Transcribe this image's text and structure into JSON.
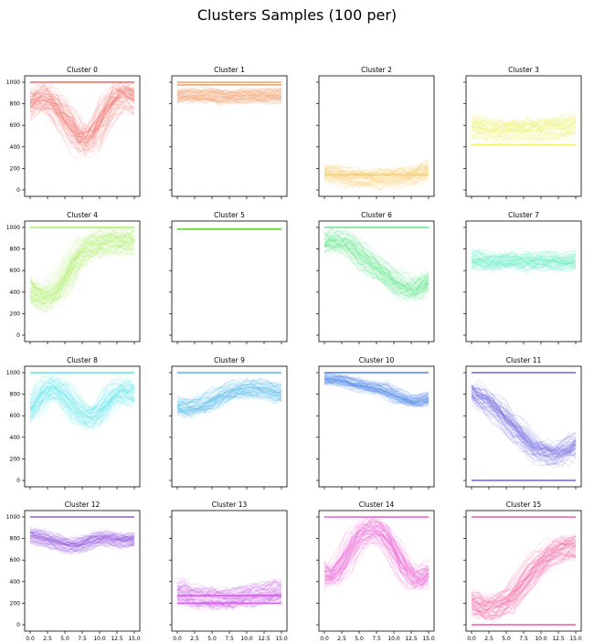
{
  "title": "Clusters Samples (100 per)",
  "chart_data": {
    "type": "line",
    "title": "Clusters Samples (100 per)",
    "layout": "4x4 grid of panels, shared x axis per column, shared y axis per row",
    "xlim": [
      0,
      15
    ],
    "ylim": [
      0,
      1000
    ],
    "xticks": [
      "0.0",
      "2.5",
      "5.0",
      "7.5",
      "10.0",
      "12.5",
      "15.0"
    ],
    "yticks": [
      "0",
      "200",
      "400",
      "600",
      "800",
      "1000"
    ],
    "samples_per_panel": 100,
    "grid": false,
    "panels": [
      {
        "title": "Cluster 0",
        "color": "#f0625d",
        "x": [
          0,
          1,
          2,
          3,
          4,
          5,
          6,
          7,
          8,
          9,
          10,
          11,
          12,
          13,
          14,
          15
        ],
        "center": [
          780,
          820,
          840,
          800,
          730,
          640,
          560,
          460,
          440,
          490,
          600,
          720,
          820,
          860,
          870,
          820
        ],
        "spread": 130,
        "flat": [
          1000
        ]
      },
      {
        "title": "Cluster 1",
        "color": "#f2a46e",
        "x": [
          0,
          1,
          2,
          3,
          4,
          5,
          6,
          7,
          8,
          9,
          10,
          11,
          12,
          13,
          14,
          15
        ],
        "center": [
          880,
          885,
          870,
          880,
          875,
          880,
          870,
          865,
          880,
          875,
          870,
          880,
          870,
          880,
          875,
          880
        ],
        "spread": 70,
        "flat": [
          1000,
          975
        ]
      },
      {
        "title": "Cluster 2",
        "color": "#f7cf6e",
        "x": [
          0,
          1,
          2,
          3,
          4,
          5,
          6,
          7,
          8,
          9,
          10,
          11,
          12,
          13,
          14,
          15
        ],
        "center": [
          160,
          140,
          130,
          120,
          110,
          110,
          100,
          100,
          100,
          110,
          110,
          110,
          120,
          130,
          150,
          180
        ],
        "spread": 90,
        "flat": [
          140
        ]
      },
      {
        "title": "Cluster 3",
        "color": "#eef46a",
        "x": [
          0,
          1,
          2,
          3,
          4,
          5,
          6,
          7,
          8,
          9,
          10,
          11,
          12,
          13,
          14,
          15
        ],
        "center": [
          560,
          580,
          560,
          540,
          540,
          550,
          560,
          540,
          560,
          550,
          560,
          570,
          560,
          560,
          580,
          600
        ],
        "spread": 110,
        "flat": [
          420
        ]
      },
      {
        "title": "Cluster 4",
        "color": "#a7ee5c",
        "x": [
          0,
          1,
          2,
          3,
          4,
          5,
          6,
          7,
          8,
          9,
          10,
          11,
          12,
          13,
          14,
          15
        ],
        "center": [
          420,
          360,
          340,
          360,
          430,
          530,
          650,
          740,
          800,
          830,
          850,
          860,
          870,
          870,
          870,
          860
        ],
        "spread": 120,
        "flat": [
          1000
        ]
      },
      {
        "title": "Cluster 5",
        "color": "#5cd62d",
        "x": [
          0,
          1,
          2,
          3,
          4,
          5,
          6,
          7,
          8,
          9,
          10,
          11,
          12,
          13,
          14,
          15
        ],
        "center": [
          985,
          985,
          985,
          985,
          985,
          985,
          985,
          985,
          985,
          985,
          985,
          985,
          985,
          985,
          985,
          985
        ],
        "spread": 0,
        "flat": [
          985
        ]
      },
      {
        "title": "Cluster 6",
        "color": "#5ee88a",
        "x": [
          0,
          1,
          2,
          3,
          4,
          5,
          6,
          7,
          8,
          9,
          10,
          11,
          12,
          13,
          14,
          15
        ],
        "center": [
          860,
          880,
          880,
          860,
          820,
          760,
          710,
          660,
          610,
          560,
          510,
          470,
          440,
          430,
          450,
          520
        ],
        "spread": 110,
        "flat": [
          1000
        ]
      },
      {
        "title": "Cluster 7",
        "color": "#5cecbe",
        "x": [
          0,
          1,
          2,
          3,
          4,
          5,
          6,
          7,
          8,
          9,
          10,
          11,
          12,
          13,
          14,
          15
        ],
        "center": [
          700,
          710,
          690,
          680,
          690,
          700,
          690,
          700,
          680,
          690,
          700,
          690,
          690,
          680,
          690,
          700
        ],
        "spread": 90,
        "flat": []
      },
      {
        "title": "Cluster 8",
        "color": "#5ae8ee",
        "x": [
          0,
          1,
          2,
          3,
          4,
          5,
          6,
          7,
          8,
          9,
          10,
          11,
          12,
          13,
          14,
          15
        ],
        "center": [
          640,
          720,
          820,
          860,
          850,
          800,
          720,
          640,
          600,
          580,
          620,
          700,
          780,
          830,
          840,
          800
        ],
        "spread": 110,
        "flat": [
          1000
        ]
      },
      {
        "title": "Cluster 9",
        "color": "#4fb8ee",
        "x": [
          0,
          1,
          2,
          3,
          4,
          5,
          6,
          7,
          8,
          9,
          10,
          11,
          12,
          13,
          14,
          15
        ],
        "center": [
          700,
          680,
          680,
          700,
          720,
          750,
          790,
          820,
          840,
          850,
          860,
          860,
          860,
          850,
          830,
          810
        ],
        "spread": 90,
        "flat": [
          1000
        ]
      },
      {
        "title": "Cluster 10",
        "color": "#4f86ea",
        "x": [
          0,
          1,
          2,
          3,
          4,
          5,
          6,
          7,
          8,
          9,
          10,
          11,
          12,
          13,
          14,
          15
        ],
        "center": [
          940,
          940,
          930,
          920,
          900,
          880,
          870,
          860,
          850,
          820,
          790,
          760,
          740,
          730,
          740,
          760
        ],
        "spread": 60,
        "flat": [
          1000
        ]
      },
      {
        "title": "Cluster 11",
        "color": "#6b63e2",
        "x": [
          0,
          1,
          2,
          3,
          4,
          5,
          6,
          7,
          8,
          9,
          10,
          11,
          12,
          13,
          14,
          15
        ],
        "center": [
          820,
          790,
          750,
          700,
          640,
          570,
          500,
          430,
          370,
          310,
          270,
          250,
          240,
          250,
          280,
          330
        ],
        "spread": 110,
        "flat": [
          1000,
          0
        ]
      },
      {
        "title": "Cluster 12",
        "color": "#9657e2",
        "x": [
          0,
          1,
          2,
          3,
          4,
          5,
          6,
          7,
          8,
          9,
          10,
          11,
          12,
          13,
          14,
          15
        ],
        "center": [
          830,
          820,
          800,
          780,
          760,
          740,
          730,
          730,
          750,
          780,
          800,
          800,
          790,
          780,
          780,
          790
        ],
        "spread": 70,
        "flat": [
          1000
        ]
      },
      {
        "title": "Cluster 13",
        "color": "#cf5ee9",
        "x": [
          0,
          1,
          2,
          3,
          4,
          5,
          6,
          7,
          8,
          9,
          10,
          11,
          12,
          13,
          14,
          15
        ],
        "center": [
          320,
          300,
          280,
          270,
          260,
          250,
          250,
          240,
          250,
          260,
          270,
          280,
          290,
          300,
          310,
          320
        ],
        "spread": 100,
        "flat": [
          270,
          200
        ]
      },
      {
        "title": "Cluster 14",
        "color": "#ee54d4",
        "x": [
          0,
          1,
          2,
          3,
          4,
          5,
          6,
          7,
          8,
          9,
          10,
          11,
          12,
          13,
          14,
          15
        ],
        "center": [
          470,
          440,
          500,
          600,
          720,
          820,
          870,
          880,
          860,
          800,
          700,
          580,
          480,
          420,
          420,
          480
        ],
        "spread": 120,
        "flat": [
          1000
        ]
      },
      {
        "title": "Cluster 15",
        "color": "#f2589c",
        "x": [
          0,
          1,
          2,
          3,
          4,
          5,
          6,
          7,
          8,
          9,
          10,
          11,
          12,
          13,
          14,
          15
        ],
        "center": [
          200,
          160,
          140,
          150,
          180,
          220,
          280,
          360,
          440,
          520,
          590,
          640,
          680,
          710,
          720,
          720
        ],
        "spread": 110,
        "flat": [
          0,
          1000
        ]
      }
    ]
  }
}
